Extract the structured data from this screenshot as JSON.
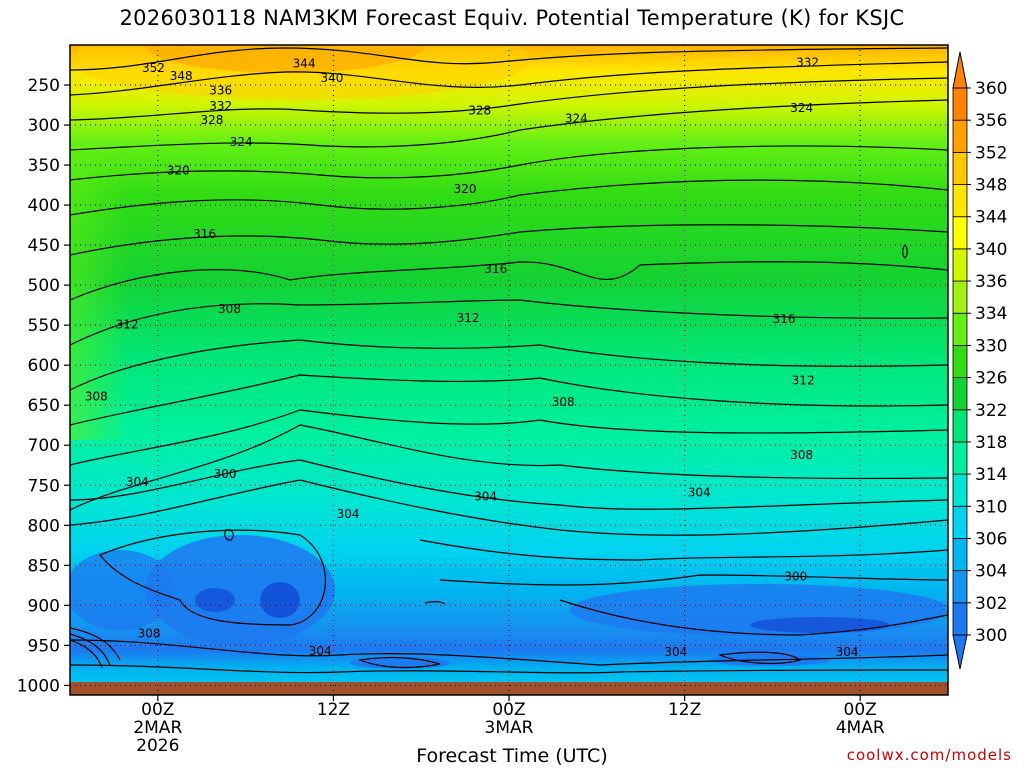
{
  "title": "2026030118 NAM3KM Forecast Equiv. Potential Temperature (K) for KSJC",
  "credit": "coolwx.com/models",
  "chart_data": {
    "type": "heatmap",
    "title": "2026030118 NAM3KM Forecast Equiv. Potential Temperature (K) for KSJC",
    "xlabel": "Forecast Time (UTC)",
    "ylabel": "",
    "x_ticks": [
      {
        "hours": 6,
        "lines": [
          "00Z",
          "2MAR",
          "2026"
        ]
      },
      {
        "hours": 18,
        "lines": [
          "12Z"
        ]
      },
      {
        "hours": 30,
        "lines": [
          "00Z",
          "3MAR"
        ]
      },
      {
        "hours": 42,
        "lines": [
          "12Z"
        ]
      },
      {
        "hours": 54,
        "lines": [
          "00Z",
          "4MAR"
        ]
      }
    ],
    "x_range_hours": [
      0,
      60
    ],
    "y_ticks": [
      250,
      300,
      350,
      400,
      450,
      500,
      550,
      600,
      650,
      700,
      750,
      800,
      850,
      900,
      950,
      1000
    ],
    "y_range": [
      200,
      1012
    ],
    "y_inverted": true,
    "grid": true,
    "colorbar": {
      "ticks": [
        300,
        302,
        304,
        306,
        310,
        314,
        318,
        322,
        326,
        330,
        334,
        336,
        340,
        344,
        348,
        352,
        356,
        360
      ],
      "bins": [
        {
          "from": 300,
          "to": 302,
          "color": "#1e78f0"
        },
        {
          "from": 302,
          "to": 304,
          "color": "#1496f0"
        },
        {
          "from": 304,
          "to": 306,
          "color": "#00b4f0"
        },
        {
          "from": 306,
          "to": 310,
          "color": "#00d2f0"
        },
        {
          "from": 310,
          "to": 314,
          "color": "#00e6d2"
        },
        {
          "from": 314,
          "to": 318,
          "color": "#00f0a0"
        },
        {
          "from": 318,
          "to": 322,
          "color": "#00e678"
        },
        {
          "from": 322,
          "to": 326,
          "color": "#14d232"
        },
        {
          "from": 326,
          "to": 330,
          "color": "#32dc14"
        },
        {
          "from": 330,
          "to": 334,
          "color": "#64f014"
        },
        {
          "from": 334,
          "to": 336,
          "color": "#a0f014"
        },
        {
          "from": 336,
          "to": 340,
          "color": "#d2f500"
        },
        {
          "from": 340,
          "to": 344,
          "color": "#ffff00"
        },
        {
          "from": 344,
          "to": 348,
          "color": "#ffe600"
        },
        {
          "from": 348,
          "to": 352,
          "color": "#ffc800"
        },
        {
          "from": 352,
          "to": 356,
          "color": "#ffa000"
        },
        {
          "from": 356,
          "to": 360,
          "color": "#ff8200"
        }
      ],
      "under_color": "#1e78f0",
      "over_color": "#ff8200"
    },
    "ground_color": "#a0522d",
    "contour_labels": [
      {
        "text": "352",
        "h": 5.7,
        "p": 229
      },
      {
        "text": "348",
        "h": 7.6,
        "p": 239
      },
      {
        "text": "344",
        "h": 16.0,
        "p": 223
      },
      {
        "text": "340",
        "h": 17.9,
        "p": 241
      },
      {
        "text": "336",
        "h": 10.3,
        "p": 257
      },
      {
        "text": "332",
        "h": 10.3,
        "p": 276
      },
      {
        "text": "332",
        "h": 50.4,
        "p": 222
      },
      {
        "text": "328",
        "h": 9.7,
        "p": 294
      },
      {
        "text": "328",
        "h": 28.0,
        "p": 282
      },
      {
        "text": "324",
        "h": 11.7,
        "p": 321
      },
      {
        "text": "324",
        "h": 34.6,
        "p": 292
      },
      {
        "text": "324",
        "h": 50.0,
        "p": 279
      },
      {
        "text": "320",
        "h": 7.4,
        "p": 357
      },
      {
        "text": "320",
        "h": 27.0,
        "p": 380
      },
      {
        "text": "316",
        "h": 9.2,
        "p": 436
      },
      {
        "text": "316",
        "h": 29.1,
        "p": 480
      },
      {
        "text": "316",
        "h": 48.8,
        "p": 542
      },
      {
        "text": "312",
        "h": 3.9,
        "p": 549
      },
      {
        "text": "312",
        "h": 27.2,
        "p": 541
      },
      {
        "text": "312",
        "h": 50.1,
        "p": 619
      },
      {
        "text": "308",
        "h": 1.8,
        "p": 639
      },
      {
        "text": "308",
        "h": 10.9,
        "p": 530
      },
      {
        "text": "308",
        "h": 33.7,
        "p": 646
      },
      {
        "text": "308",
        "h": 50.0,
        "p": 712
      },
      {
        "text": "304",
        "h": 4.6,
        "p": 746
      },
      {
        "text": "304",
        "h": 19.0,
        "p": 786
      },
      {
        "text": "304",
        "h": 28.4,
        "p": 764
      },
      {
        "text": "304",
        "h": 43.0,
        "p": 759
      },
      {
        "text": "304",
        "h": 17.1,
        "p": 957
      },
      {
        "text": "304",
        "h": 41.4,
        "p": 958
      },
      {
        "text": "304",
        "h": 53.1,
        "p": 958
      },
      {
        "text": "300",
        "h": 10.6,
        "p": 736
      },
      {
        "text": "300",
        "h": 49.6,
        "p": 864
      },
      {
        "text": "308",
        "h": 5.4,
        "p": 935
      }
    ]
  }
}
